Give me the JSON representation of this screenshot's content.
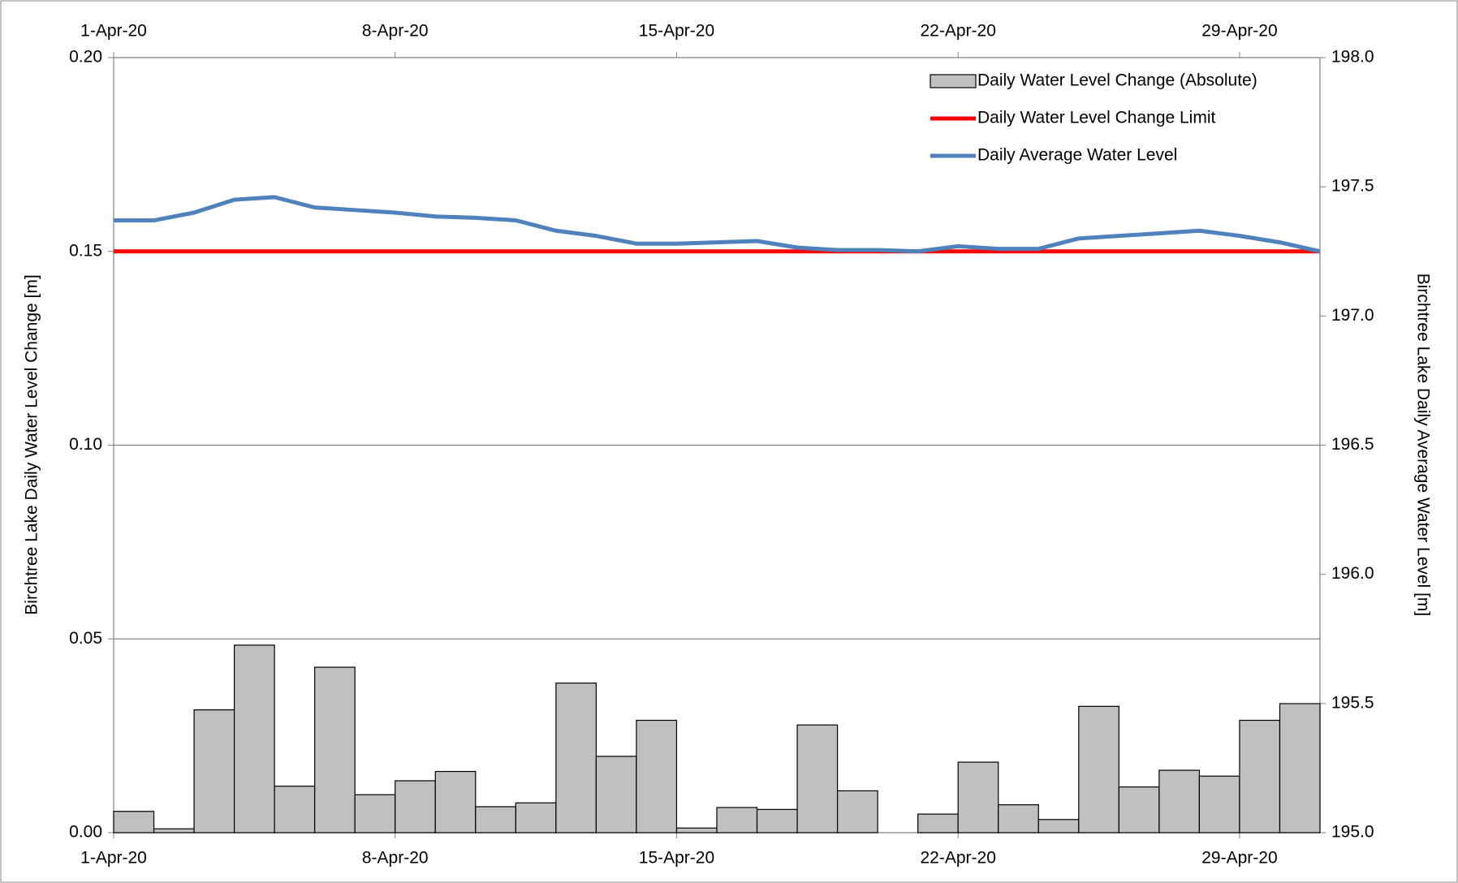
{
  "chart_data": {
    "type": "combo",
    "y_label": "Birchtree Lake Daily Water Level Change [m]",
    "y2_label": "Birchtree Lake Daily Average Water Level [m]",
    "xlim": [
      0,
      30
    ],
    "xticks": [
      {
        "value": 0,
        "label": "1-Apr-20"
      },
      {
        "value": 7,
        "label": "8-Apr-20"
      },
      {
        "value": 14,
        "label": "15-Apr-20"
      },
      {
        "value": 21,
        "label": "22-Apr-20"
      },
      {
        "value": 28,
        "label": "29-Apr-20"
      }
    ],
    "ylim": [
      0,
      0.2
    ],
    "yticks": [
      {
        "value": 0,
        "label": "0.00"
      },
      0.05,
      {
        "value": 0.1,
        "label": "0.10"
      },
      0.15,
      {
        "value": 0.2,
        "label": "0.20"
      }
    ],
    "y2lim": [
      195,
      198
    ],
    "y2ticks": [
      {
        "value": 195,
        "label": "195.0"
      },
      195.5,
      {
        "value": 196,
        "label": "196.0"
      },
      196.5,
      {
        "value": 197,
        "label": "197.0"
      },
      197.5,
      {
        "value": 198,
        "label": "198.0"
      }
    ],
    "grid": true,
    "legend": "top-right",
    "series": [
      {
        "name": "Daily Water Level Change (Absolute)",
        "type": "bar",
        "color": "#c0c0c0",
        "x": [
          0,
          1,
          2,
          3,
          4,
          5,
          6,
          7,
          8,
          9,
          10,
          11,
          12,
          13,
          14,
          15,
          16,
          17,
          18,
          19,
          20,
          21,
          22,
          23,
          24,
          25,
          26,
          27,
          28,
          29
        ],
        "values": [
          0.0055,
          0.001,
          0.0317,
          0.0484,
          0.012,
          0.0427,
          0.0098,
          0.0134,
          0.0158,
          0.0067,
          0.0077,
          0.0386,
          0.0197,
          0.029,
          0.0012,
          0.0065,
          0.006,
          0.0278,
          0.0108,
          0,
          0.0048,
          0.0182,
          0.0072,
          0.0034,
          0.0326,
          0.0118,
          0.0161,
          0.0146,
          0.029,
          0.0333
        ]
      },
      {
        "name": "Daily Water Level Change Limit",
        "type": "line",
        "color": "#ff0000",
        "x": [
          0,
          30
        ],
        "values": [
          0.15,
          0.15
        ]
      },
      {
        "name": "Daily Average Water Level",
        "type": "line",
        "color": "#4f81bd",
        "axis": "y2",
        "x": [
          0,
          1,
          2,
          3,
          4,
          5,
          6,
          7,
          8,
          9,
          10,
          11,
          12,
          13,
          14,
          15,
          16,
          17,
          18,
          19,
          20,
          21,
          22,
          23,
          24,
          25,
          26,
          27,
          28,
          29,
          30
        ],
        "values": [
          197.37,
          197.37,
          197.4,
          197.45,
          197.46,
          197.42,
          197.41,
          197.4,
          197.385,
          197.38,
          197.37,
          197.33,
          197.31,
          197.28,
          197.28,
          197.285,
          197.29,
          197.265,
          197.255,
          197.255,
          197.25,
          197.27,
          197.26,
          197.26,
          197.3,
          197.31,
          197.32,
          197.33,
          197.31,
          197.285,
          197.25
        ]
      }
    ]
  }
}
